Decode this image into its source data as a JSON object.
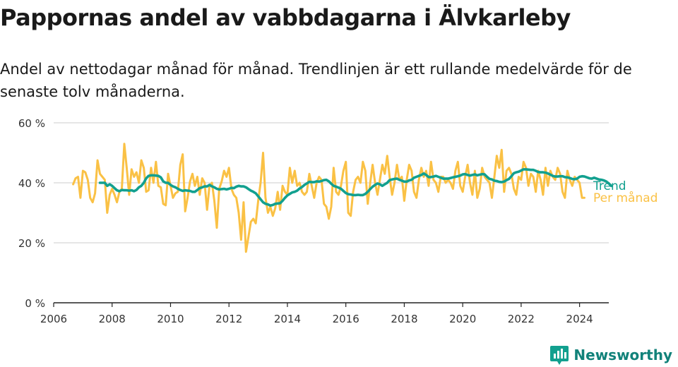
{
  "header": {
    "title": "Pappornas andel av vabbdagarna i Älvkarleby",
    "subtitle": "Andel av nettodagar månad för månad. Trendlinjen är ett rullande medelvärde för de senaste tolv månaderna."
  },
  "brand": {
    "name": "Newsworthy",
    "icon": "newsworthy-logo-icon",
    "color": "#12a08f"
  },
  "chart_data": {
    "type": "line",
    "title": "Pappornas andel av vabbdagarna i Älvkarleby",
    "xlabel": "",
    "ylabel": "",
    "xlim": [
      2006,
      2025
    ],
    "ylim": [
      0,
      60
    ],
    "x_ticks": [
      2006,
      2008,
      2010,
      2012,
      2014,
      2016,
      2018,
      2020,
      2022,
      2024
    ],
    "x_tick_labels": [
      "2006",
      "2008",
      "2010",
      "2012",
      "2014",
      "2016",
      "2018",
      "2020",
      "2022",
      "2024"
    ],
    "y_ticks": [
      0,
      20,
      40,
      60
    ],
    "y_tick_labels": [
      "0 %",
      "20 %",
      "40 %",
      "60 %"
    ],
    "grid": "horizontal",
    "legend": "inline labels at line ends (right)",
    "series": [
      {
        "name": "Per månad",
        "color": "#fac145",
        "start": "2006-09",
        "step": "month",
        "values": [
          39.5,
          41.5,
          42,
          35,
          44,
          43.5,
          41,
          35,
          33.5,
          36.5,
          47.5,
          43,
          42,
          41,
          30,
          36,
          38,
          36,
          33.5,
          37,
          38,
          53,
          45,
          36,
          44.5,
          42,
          43.5,
          40,
          47.5,
          45,
          37,
          37.5,
          45,
          40,
          47,
          39,
          38.5,
          33,
          32.5,
          43,
          39,
          35,
          36.5,
          37,
          46,
          49.5,
          30.5,
          35,
          40.5,
          43,
          39,
          42,
          36,
          41.5,
          40,
          31,
          39,
          40,
          34,
          25,
          38,
          40.5,
          44,
          42,
          45,
          38,
          36,
          35,
          30,
          21,
          33.5,
          17,
          22,
          27,
          28,
          26.5,
          34,
          40,
          50,
          35,
          30,
          32,
          29,
          31.5,
          37,
          31,
          39,
          37,
          36,
          45,
          40,
          44,
          39,
          40,
          37,
          36,
          37,
          43,
          39,
          35,
          40,
          42,
          41,
          33,
          32,
          28,
          32,
          45,
          37,
          36,
          39,
          44,
          47,
          30,
          29,
          37,
          41,
          42,
          40,
          47,
          44,
          33,
          40,
          46,
          40,
          36,
          41,
          46,
          43,
          49,
          42,
          36,
          40,
          46,
          41,
          42,
          34,
          41,
          46,
          44,
          37,
          35,
          41,
          45,
          42,
          44,
          39,
          47,
          41,
          40,
          37,
          42,
          42,
          40,
          41,
          40,
          38,
          44,
          47,
          39,
          37,
          42,
          46,
          40,
          36,
          44,
          35,
          38,
          45,
          42,
          41,
          40,
          35,
          42,
          49,
          45,
          51,
          37,
          44,
          45,
          43,
          38,
          36,
          42,
          41,
          47,
          45,
          39,
          43,
          42,
          37,
          44,
          41,
          36,
          45,
          39,
          44,
          42,
          41,
          45,
          43,
          37,
          35,
          44,
          41,
          39,
          42,
          41,
          40,
          35,
          35
        ],
        "end_label": "Per månad"
      },
      {
        "name": "Trend",
        "color": "#12a08f",
        "start": "2007-08",
        "step": "month",
        "values": [
          40,
          40,
          40,
          39,
          39.5,
          39,
          38.2,
          37.5,
          37.2,
          37.6,
          37.5,
          37.5,
          37.4,
          37.5,
          37.2,
          37.6,
          38.5,
          39,
          40,
          41.5,
          42.3,
          42.5,
          42.5,
          42.4,
          42.3,
          41.8,
          40.5,
          40,
          40,
          39.3,
          38.8,
          38.5,
          38,
          37.6,
          37.3,
          37.5,
          37.4,
          37.3,
          37,
          37,
          37.6,
          38.2,
          38.5,
          38.8,
          38.8,
          39.3,
          38.8,
          38.5,
          38,
          37.8,
          37.9,
          38,
          37.8,
          38,
          38.3,
          38.2,
          38.7,
          39,
          38.8,
          38.8,
          38.5,
          37.9,
          37.4,
          37,
          36.5,
          35.5,
          34.5,
          33.5,
          33,
          32.8,
          32.4,
          32.6,
          33,
          33.1,
          33.2,
          34,
          35,
          35.8,
          36.3,
          36.8,
          37,
          37.4,
          38.1,
          38.6,
          39.3,
          39.8,
          40.3,
          40.2,
          40.2,
          40.5,
          40.4,
          40.6,
          40.9,
          41,
          40.5,
          39.7,
          39,
          38.7,
          38.4,
          38,
          37.3,
          36.6,
          36.2,
          36.1,
          35.9,
          35.9,
          36,
          35.9,
          35.9,
          36.3,
          37,
          37.9,
          38.7,
          39.3,
          39.8,
          39.5,
          39,
          39.5,
          40,
          40.9,
          41.1,
          41.3,
          41.4,
          41,
          40.7,
          40.4,
          40.4,
          40.8,
          41,
          41.7,
          42,
          42.3,
          42.6,
          43.1,
          42.6,
          41.9,
          41.9,
          42.1,
          42.3,
          42,
          41.7,
          41.4,
          41.4,
          41.4,
          41.6,
          41.8,
          42,
          42.2,
          42.4,
          42.8,
          42.9,
          42.6,
          42.4,
          42.6,
          42.8,
          42.5,
          42.7,
          42.9,
          42.8,
          42,
          41.3,
          41.1,
          40.7,
          40.6,
          40.3,
          40.2,
          40.4,
          40.9,
          41.3,
          42.2,
          43.2,
          43.5,
          43.7,
          44.1,
          44.5,
          44.5,
          44.4,
          44.3,
          44.3,
          44,
          43.6,
          43.5,
          43.5,
          43.4,
          43.1,
          42.7,
          42.3,
          42.1,
          42.1,
          42.2,
          42.2,
          41.9,
          41.8,
          41.6,
          41.3,
          41.2,
          41.4,
          42,
          42.2,
          42.1,
          41.8,
          41.5,
          41.4,
          41.7,
          41.4,
          41.1,
          41,
          40.8,
          40.4,
          39.8,
          39
        ],
        "end_label": "Trend"
      }
    ]
  }
}
